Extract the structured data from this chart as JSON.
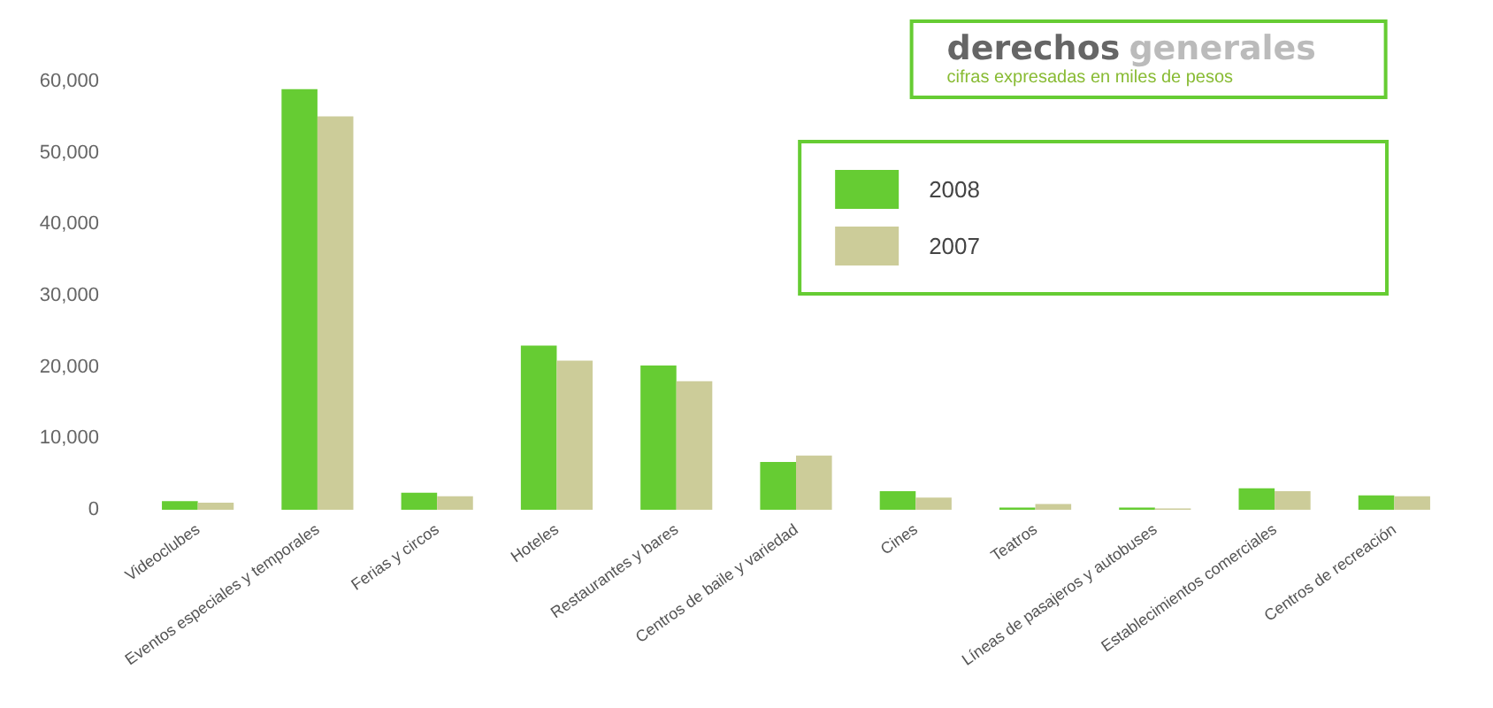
{
  "chart_data": {
    "type": "bar",
    "title": "derechos generales",
    "subtitle": "cifras expresadas en miles de pesos",
    "categories": [
      "Videoclubes",
      "Eventos especiales y temporales",
      "Ferias y circos",
      "Hoteles",
      "Restaurantes y bares",
      "Centros de baile y variedad",
      "Cines",
      "Teatros",
      "Líneas de pasajeros y autobuses",
      "Establecimientos comerciales",
      "Centros de recreación"
    ],
    "series": [
      {
        "name": "2008",
        "color": "#66cc33",
        "values": [
          1200,
          58900,
          2400,
          23000,
          20200,
          6700,
          2600,
          300,
          300,
          3000,
          2000
        ]
      },
      {
        "name": "2007",
        "color": "#cccc99",
        "values": [
          1000,
          55100,
          1900,
          20900,
          18000,
          7600,
          1700,
          800,
          200,
          2600,
          1900
        ]
      }
    ],
    "ylim": [
      0,
      60000
    ],
    "yticks": [
      0,
      {
        "value": 10000,
        "label": "10,000"
      },
      {
        "value": 20000,
        "label": "20,000"
      },
      {
        "value": 30000,
        "label": "30,000"
      },
      {
        "value": 40000,
        "label": "40,000"
      },
      {
        "value": 50000,
        "label": "50,000"
      },
      {
        "value": 60000,
        "label": "60,000"
      }
    ],
    "grid": false,
    "legend": "top right"
  }
}
